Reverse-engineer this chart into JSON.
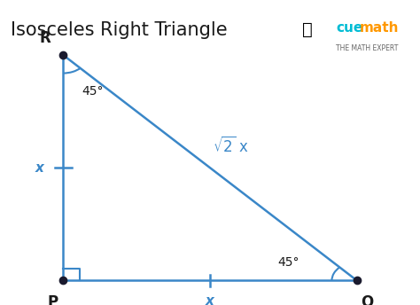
{
  "title": "Isosceles Right Triangle",
  "title_fontsize": 15,
  "title_color": "#1a1a1a",
  "bg_color": "#ffffff",
  "triangle_color": "#3a87c8",
  "triangle_linewidth": 1.8,
  "dot_color": "#1a1a2e",
  "dot_size": 6,
  "label_color": "#1a1a1a",
  "blue_label_color": "#3a87c8",
  "P": [
    0.15,
    0.08
  ],
  "Q": [
    0.85,
    0.08
  ],
  "R": [
    0.15,
    0.82
  ],
  "xlim": [
    0.0,
    1.0
  ],
  "ylim": [
    0.0,
    1.0
  ],
  "cue_color": "#00bcd4",
  "math_color": "#ff9800",
  "subtitle_color": "#666666"
}
